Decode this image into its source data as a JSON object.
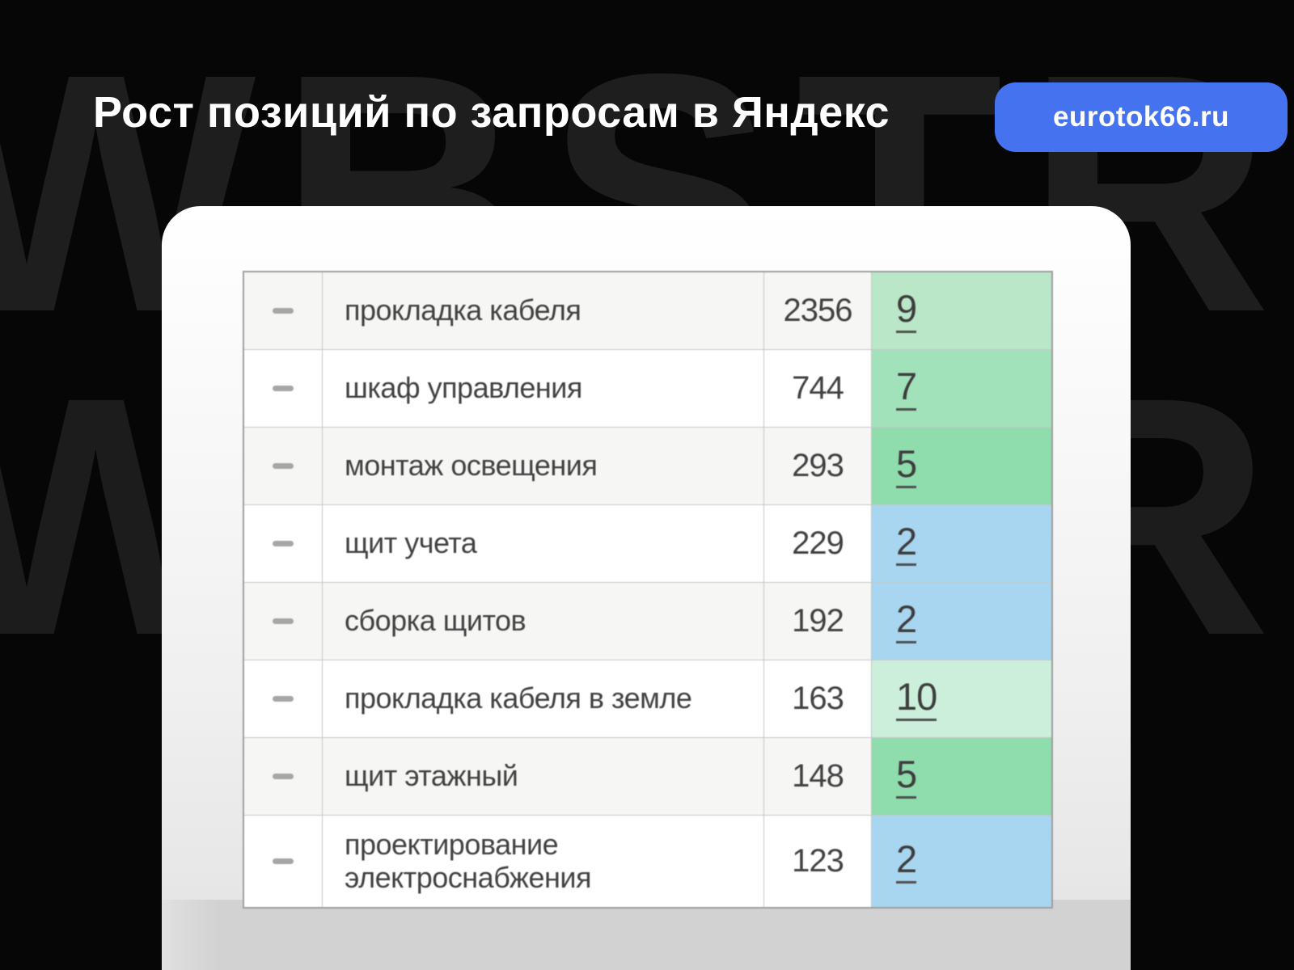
{
  "header": {
    "title": "Рост позиций по запросам в Яндекс",
    "badge_label": "eurotok66.ru"
  },
  "watermark": {
    "row1": "WBSTR",
    "row2": "WBSTR"
  },
  "icons": {
    "drag_handle": "drag-handle-dash"
  },
  "colors": {
    "background": "#060606",
    "watermark_text": "#1e1e1e",
    "badge_blue": "#4573ef",
    "position_green_strong": "#8fdcac",
    "position_green_medium": "#a2e2bb",
    "position_green_light": "#b9e7c8",
    "position_green_pale": "#ccefdb",
    "position_blue": "#a8d5f0"
  },
  "table": {
    "rows": [
      {
        "query": "прокладка кабеля",
        "volume": "2356",
        "position": "9",
        "tone": "green-light"
      },
      {
        "query": "шкаф управления",
        "volume": "744",
        "position": "7",
        "tone": "green-medium"
      },
      {
        "query": "монтаж освещения",
        "volume": "293",
        "position": "5",
        "tone": "green-strong"
      },
      {
        "query": "щит учета",
        "volume": "229",
        "position": "2",
        "tone": "blue"
      },
      {
        "query": "сборка щитов",
        "volume": "192",
        "position": "2",
        "tone": "blue"
      },
      {
        "query": "прокладка кабеля в земле",
        "volume": "163",
        "position": "10",
        "tone": "green-pale"
      },
      {
        "query": "щит этажный",
        "volume": "148",
        "position": "5",
        "tone": "green-strong"
      },
      {
        "query": "проектирование электроснабжения",
        "volume": "123",
        "position": "2",
        "tone": "blue"
      }
    ]
  }
}
